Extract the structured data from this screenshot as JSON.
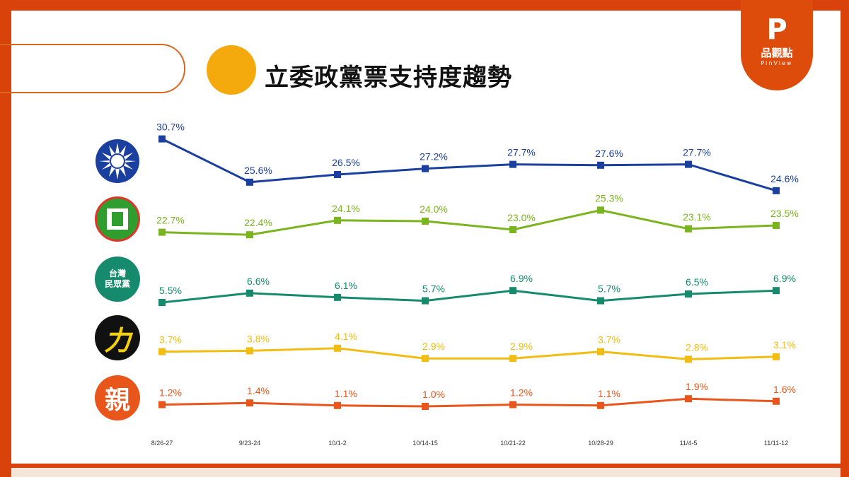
{
  "header": {
    "title": "立委政黨票支持度趨勢",
    "logo": {
      "text_zh": "品觀點",
      "text_en": "PinView"
    }
  },
  "chart_data": {
    "type": "line",
    "title": "立委政黨票支持度趨勢",
    "categories": [
      "8/26-27",
      "9/23-24",
      "10/1-2",
      "10/14-15",
      "10/21-22",
      "10/28-29",
      "11/4-5",
      "11/11-12"
    ],
    "value_suffix": "%",
    "grid": false,
    "legend": "party emblems at left of each line",
    "series": [
      {
        "party_logo": "kmt-emblem",
        "color": "#1b3f9f",
        "values": [
          30.7,
          25.6,
          26.5,
          27.2,
          27.7,
          27.6,
          27.7,
          24.6
        ]
      },
      {
        "party_logo": "dpp-emblem",
        "color": "#7ab41e",
        "values": [
          22.7,
          22.4,
          24.1,
          24.0,
          23.0,
          25.3,
          23.1,
          23.5
        ]
      },
      {
        "party_logo": "tpp-emblem",
        "logo_text": "台灣\n民眾黨",
        "color": "#158a6c",
        "values": [
          5.5,
          6.6,
          6.1,
          5.7,
          6.9,
          5.7,
          6.5,
          6.9
        ]
      },
      {
        "party_logo": "npp-emblem",
        "logo_text": "力",
        "color": "#f1bd12",
        "values": [
          3.7,
          3.8,
          4.1,
          2.9,
          2.9,
          3.7,
          2.8,
          3.1
        ]
      },
      {
        "party_logo": "pfp-emblem",
        "logo_text": "親",
        "color": "#e8561c",
        "values": [
          1.2,
          1.4,
          1.1,
          1.0,
          1.2,
          1.1,
          1.9,
          1.6
        ]
      }
    ]
  }
}
